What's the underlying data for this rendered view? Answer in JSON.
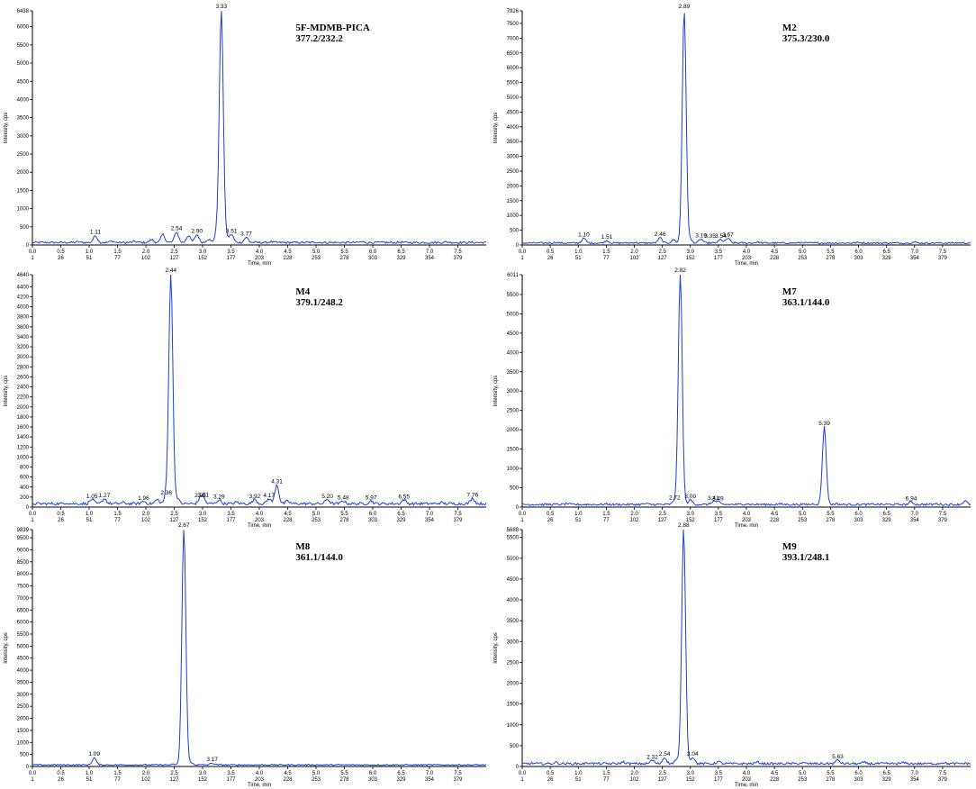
{
  "chart_data": [
    {
      "type": "line",
      "title": "5F-MDMB-PICA",
      "transition": "377.2/232.2",
      "xlabel": "Time, min",
      "ylabel": "Intensity, cps",
      "xlim": [
        0,
        8.0
      ],
      "ylim": [
        0,
        6438
      ],
      "time_ticks": [
        "0.0",
        "0.5",
        "1.0",
        "1.5",
        "2.0",
        "2.5",
        "3.0",
        "3.5",
        "4.0",
        "4.5",
        "5.0",
        "5.5",
        "6.0",
        "6.5",
        "7.0",
        "7.5"
      ],
      "scan_ticks": [
        "1",
        "26",
        "51",
        "77",
        "102",
        "127",
        "152",
        "177",
        "203",
        "228",
        "253",
        "278",
        "303",
        "329",
        "354",
        "379"
      ],
      "y_ticks": [
        "6438",
        "6000",
        "5500",
        "5000",
        "4500",
        "4000",
        "3500",
        "3000",
        "2500",
        "2000",
        "1500",
        "1000",
        "500",
        "0"
      ],
      "series": [
        {
          "x": [
            0.2,
            0.5,
            0.8,
            1.11,
            1.4,
            1.8,
            2.1,
            2.3,
            2.54,
            2.75,
            2.9,
            3.1,
            3.25,
            3.33,
            3.42,
            3.51,
            3.77,
            4.2,
            5.0,
            5.8,
            6.5,
            7.3,
            7.9
          ],
          "values": [
            40,
            30,
            60,
            230,
            80,
            70,
            120,
            260,
            330,
            230,
            260,
            130,
            300,
            6438,
            180,
            260,
            180,
            60,
            50,
            60,
            50,
            60,
            40
          ]
        }
      ],
      "peaks": [
        {
          "x": 1.11,
          "y": 230,
          "label": "1.11"
        },
        {
          "x": 2.54,
          "y": 330,
          "label": "2.54"
        },
        {
          "x": 2.9,
          "y": 260,
          "label": "2.90"
        },
        {
          "x": 3.33,
          "y": 6438,
          "label": "3.33"
        },
        {
          "x": 3.51,
          "y": 260,
          "label": "3.51"
        },
        {
          "x": 3.77,
          "y": 180,
          "label": "3.77"
        }
      ]
    },
    {
      "type": "line",
      "title": "M2",
      "transition": "375.3/230.0",
      "xlabel": "Time, min",
      "ylabel": "Intensity, cps",
      "xlim": [
        0,
        8.0
      ],
      "ylim": [
        0,
        7926
      ],
      "time_ticks": [
        "0.0",
        "0.5",
        "1.0",
        "1.5",
        "2.0",
        "2.5",
        "3.0",
        "3.5",
        "4.0",
        "4.5",
        "5.0",
        "5.5",
        "6.0",
        "6.5",
        "7.0",
        "7.5"
      ],
      "scan_ticks": [
        "1",
        "26",
        "51",
        "77",
        "102",
        "127",
        "152",
        "177",
        "203",
        "228",
        "253",
        "278",
        "303",
        "329",
        "354",
        "379"
      ],
      "y_ticks": [
        "7926",
        "7500",
        "7000",
        "6500",
        "6000",
        "5500",
        "5000",
        "4500",
        "4000",
        "3500",
        "3000",
        "2500",
        "2000",
        "1500",
        "1000",
        "500",
        "0"
      ],
      "series": [
        {
          "x": [
            0.2,
            0.6,
            1.1,
            1.51,
            2.0,
            2.46,
            2.7,
            2.89,
            3.0,
            3.19,
            3.54,
            3.67,
            4.2,
            5.0,
            6.0,
            7.0,
            7.9
          ],
          "values": [
            40,
            60,
            200,
            120,
            60,
            220,
            150,
            7926,
            150,
            170,
            160,
            200,
            70,
            60,
            60,
            70,
            40
          ]
        }
      ],
      "peaks": [
        {
          "x": 1.1,
          "y": 200,
          "label": "1.10"
        },
        {
          "x": 1.51,
          "y": 120,
          "label": "1.51"
        },
        {
          "x": 2.46,
          "y": 220,
          "label": "2.46"
        },
        {
          "x": 2.89,
          "y": 7926,
          "label": "2.89"
        },
        {
          "x": 3.19,
          "y": 170,
          "label": "3.19"
        },
        {
          "x": 3.35,
          "y": 160,
          "label": "3.35"
        },
        {
          "x": 3.54,
          "y": 160,
          "label": "3.54"
        },
        {
          "x": 3.67,
          "y": 200,
          "label": "3.67"
        }
      ]
    },
    {
      "type": "line",
      "title": "M4",
      "transition": "379.1/248.2",
      "xlabel": "Time, min",
      "ylabel": "Intensity, cps",
      "xlim": [
        0,
        8.0
      ],
      "ylim": [
        0,
        4640
      ],
      "time_ticks": [
        "0.0",
        "0.5",
        "1.0",
        "1.5",
        "2.0",
        "2.5",
        "3.0",
        "3.5",
        "4.0",
        "4.5",
        "5.0",
        "5.5",
        "6.0",
        "6.5",
        "7.0",
        "7.5"
      ],
      "scan_ticks": [
        "1",
        "26",
        "51",
        "77",
        "102",
        "127",
        "152",
        "177",
        "203",
        "228",
        "253",
        "278",
        "303",
        "329",
        "354",
        "379"
      ],
      "y_ticks": [
        "4640",
        "4400",
        "4200",
        "4000",
        "3800",
        "3600",
        "3400",
        "3200",
        "3000",
        "2800",
        "2600",
        "2400",
        "2200",
        "2000",
        "1800",
        "1600",
        "1400",
        "1200",
        "1000",
        "800",
        "600",
        "400",
        "200",
        "0"
      ],
      "series": [
        {
          "x": [
            0.2,
            0.6,
            1.05,
            1.27,
            1.6,
            1.96,
            2.2,
            2.36,
            2.44,
            2.55,
            2.96,
            3.01,
            3.29,
            3.6,
            3.92,
            4.17,
            4.31,
            4.5,
            5.2,
            5.48,
            5.97,
            6.55,
            7.2,
            7.76,
            7.9
          ],
          "values": [
            40,
            60,
            130,
            140,
            60,
            90,
            120,
            200,
            4640,
            150,
            140,
            150,
            120,
            70,
            130,
            140,
            420,
            90,
            130,
            100,
            100,
            120,
            60,
            150,
            40
          ]
        }
      ],
      "peaks": [
        {
          "x": 1.05,
          "y": 130,
          "label": "1.05"
        },
        {
          "x": 1.27,
          "y": 140,
          "label": "1.27"
        },
        {
          "x": 1.96,
          "y": 90,
          "label": "1.96"
        },
        {
          "x": 2.36,
          "y": 200,
          "label": "2.36"
        },
        {
          "x": 2.44,
          "y": 4640,
          "label": "2.44"
        },
        {
          "x": 2.96,
          "y": 140,
          "label": "2.96"
        },
        {
          "x": 3.01,
          "y": 150,
          "label": "3.01"
        },
        {
          "x": 3.29,
          "y": 120,
          "label": "3.29"
        },
        {
          "x": 3.92,
          "y": 130,
          "label": "3.92"
        },
        {
          "x": 4.17,
          "y": 140,
          "label": "4.17"
        },
        {
          "x": 4.31,
          "y": 420,
          "label": "4.31"
        },
        {
          "x": 5.2,
          "y": 130,
          "label": "5.20"
        },
        {
          "x": 5.48,
          "y": 100,
          "label": "5.48"
        },
        {
          "x": 5.97,
          "y": 100,
          "label": "5.97"
        },
        {
          "x": 6.55,
          "y": 120,
          "label": "6.55"
        },
        {
          "x": 7.76,
          "y": 150,
          "label": "7.76"
        }
      ]
    },
    {
      "type": "line",
      "title": "M7",
      "transition": "363.1/144.0",
      "xlabel": "Time, min",
      "ylabel": "Intensity, cps",
      "xlim": [
        0,
        8.0
      ],
      "ylim": [
        0,
        6011
      ],
      "time_ticks": [
        "0.0",
        "0.5",
        "1.0",
        "1.5",
        "2.0",
        "2.5",
        "3.0",
        "3.5",
        "4.0",
        "4.5",
        "5.0",
        "5.5",
        "6.0",
        "6.5",
        "7.0",
        "7.5"
      ],
      "scan_ticks": [
        "1",
        "26",
        "51",
        "77",
        "102",
        "127",
        "152",
        "177",
        "203",
        "228",
        "253",
        "278",
        "303",
        "329",
        "354",
        "379"
      ],
      "y_ticks": [
        "6011",
        "5500",
        "5000",
        "4500",
        "4000",
        "3500",
        "3000",
        "2500",
        "2000",
        "1500",
        "1000",
        "500",
        "0"
      ],
      "series": [
        {
          "x": [
            0.2,
            0.8,
            1.5,
            2.2,
            2.72,
            2.82,
            3.0,
            3.41,
            3.49,
            4.0,
            4.6,
            5.2,
            5.39,
            5.6,
            6.3,
            6.94,
            7.4,
            7.9
          ],
          "values": [
            40,
            60,
            50,
            60,
            130,
            6011,
            160,
            120,
            110,
            60,
            50,
            60,
            2050,
            60,
            50,
            110,
            60,
            130
          ]
        }
      ],
      "peaks": [
        {
          "x": 2.72,
          "y": 130,
          "label": "2.72"
        },
        {
          "x": 2.82,
          "y": 6011,
          "label": "2.82"
        },
        {
          "x": 3.0,
          "y": 160,
          "label": "3.00"
        },
        {
          "x": 3.41,
          "y": 120,
          "label": "3.41"
        },
        {
          "x": 3.49,
          "y": 110,
          "label": "3.49"
        },
        {
          "x": 5.39,
          "y": 2050,
          "label": "5.39"
        },
        {
          "x": 6.94,
          "y": 110,
          "label": "6.94"
        }
      ]
    },
    {
      "type": "line",
      "title": "M8",
      "transition": "361.1/144.0",
      "xlabel": "Time, min",
      "ylabel": "Intensity, cps",
      "xlim": [
        0,
        8.0
      ],
      "ylim": [
        0,
        9839
      ],
      "time_ticks": [
        "0.0",
        "0.5",
        "1.0",
        "1.5",
        "2.0",
        "2.5",
        "3.0",
        "3.5",
        "4.0",
        "4.5",
        "5.0",
        "5.5",
        "6.0",
        "6.5",
        "7.0",
        "7.5"
      ],
      "scan_ticks": [
        "1",
        "26",
        "51",
        "77",
        "102",
        "127",
        "152",
        "177",
        "203",
        "228",
        "253",
        "278",
        "303",
        "329",
        "354",
        "379"
      ],
      "y_ticks": [
        "9839",
        "9500",
        "9000",
        "8500",
        "8000",
        "7500",
        "7000",
        "6500",
        "6000",
        "5500",
        "5000",
        "4500",
        "4000",
        "3500",
        "3000",
        "2500",
        "2000",
        "1500",
        "1000",
        "500",
        "0"
      ],
      "series": [
        {
          "x": [
            0.2,
            0.7,
            1.09,
            1.5,
            2.0,
            2.5,
            2.67,
            2.8,
            3.17,
            3.6,
            4.5,
            5.5,
            6.5,
            7.5,
            7.9
          ],
          "values": [
            30,
            40,
            330,
            40,
            30,
            60,
            9839,
            120,
            110,
            40,
            30,
            40,
            30,
            40,
            30
          ]
        }
      ],
      "peaks": [
        {
          "x": 1.09,
          "y": 330,
          "label": "1.09"
        },
        {
          "x": 2.67,
          "y": 9839,
          "label": "2.67"
        },
        {
          "x": 3.17,
          "y": 110,
          "label": "3.17"
        }
      ]
    },
    {
      "type": "line",
      "title": "M9",
      "transition": "393.1/248.1",
      "xlabel": "Time, min",
      "ylabel": "Intensity, cps",
      "xlim": [
        0,
        8.0
      ],
      "ylim": [
        0,
        5688
      ],
      "time_ticks": [
        "0.0",
        "0.5",
        "1.0",
        "1.5",
        "2.0",
        "2.5",
        "3.0",
        "3.5",
        "4.0",
        "4.5",
        "5.0",
        "5.5",
        "6.0",
        "6.5",
        "7.0",
        "7.5"
      ],
      "scan_ticks": [
        "1",
        "26",
        "51",
        "77",
        "102",
        "127",
        "152",
        "177",
        "203",
        "228",
        "253",
        "278",
        "303",
        "329",
        "354",
        "379"
      ],
      "y_ticks": [
        "5688",
        "5500",
        "5000",
        "4500",
        "4000",
        "3500",
        "3000",
        "2500",
        "2000",
        "1500",
        "1000",
        "500",
        "0"
      ],
      "series": [
        {
          "x": [
            0.2,
            0.6,
            1.2,
            1.8,
            2.32,
            2.54,
            2.75,
            2.88,
            3.04,
            3.5,
            4.2,
            5.0,
            5.63,
            6.1,
            6.8,
            7.5,
            7.9
          ],
          "values": [
            50,
            70,
            60,
            80,
            120,
            190,
            130,
            5688,
            200,
            90,
            80,
            60,
            130,
            70,
            60,
            70,
            50
          ]
        }
      ],
      "peaks": [
        {
          "x": 2.32,
          "y": 120,
          "label": "2.32"
        },
        {
          "x": 2.54,
          "y": 190,
          "label": "2.54"
        },
        {
          "x": 2.88,
          "y": 5688,
          "label": "2.88"
        },
        {
          "x": 3.04,
          "y": 200,
          "label": "3.04"
        },
        {
          "x": 5.63,
          "y": 130,
          "label": "5.63"
        }
      ]
    }
  ]
}
